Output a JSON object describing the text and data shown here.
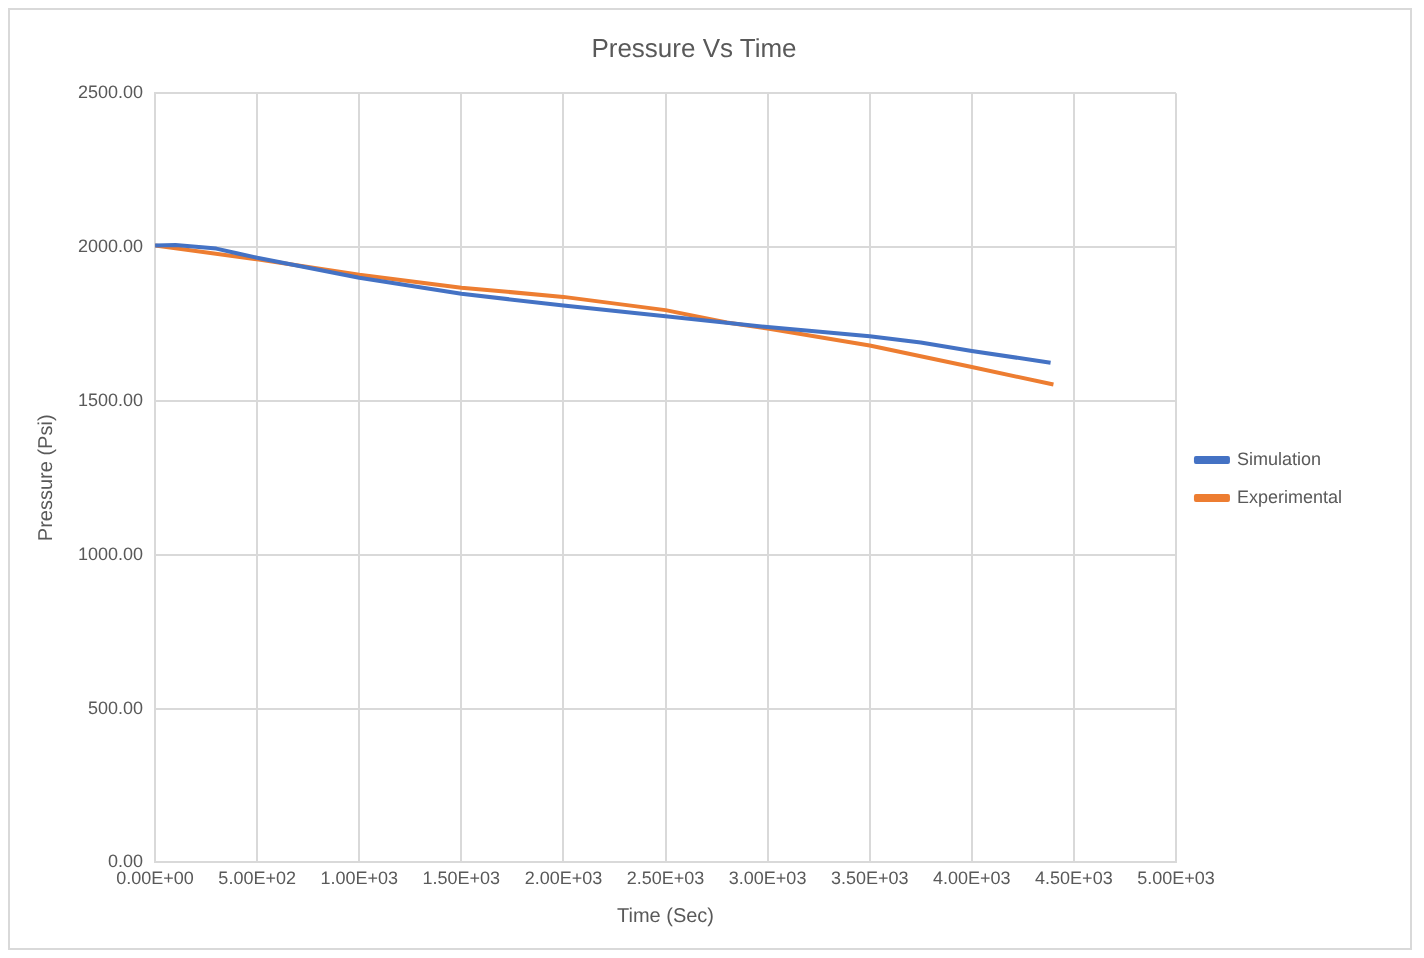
{
  "chart_data": {
    "type": "line",
    "title": "Pressure Vs Time",
    "xlabel": "Time (Sec)",
    "ylabel": "Pressure (Psi)",
    "series": [
      {
        "name": "Simulation",
        "color": "#4472c4",
        "x": [
          0,
          100,
          300,
          400,
          500,
          1000,
          1500,
          2000,
          2500,
          3000,
          3500,
          3750,
          4000,
          4386
        ],
        "values": [
          2005,
          2007,
          1995,
          1980,
          1965,
          1900,
          1848,
          1810,
          1775,
          1740,
          1710,
          1690,
          1662,
          1624
        ]
      },
      {
        "name": "Experimental",
        "color": "#ed7d31",
        "x": [
          0,
          500,
          1000,
          1500,
          2000,
          2500,
          2800,
          3000,
          3500,
          4000,
          4400
        ],
        "values": [
          2005,
          1960,
          1910,
          1868,
          1838,
          1795,
          1755,
          1735,
          1680,
          1610,
          1553
        ]
      }
    ],
    "xlim": [
      0,
      5000
    ],
    "xticks": [
      {
        "value": 0,
        "label": "0.00E+00"
      },
      {
        "value": 500,
        "label": "5.00E+02"
      },
      {
        "value": 1000,
        "label": "1.00E+03"
      },
      {
        "value": 1500,
        "label": "1.50E+03"
      },
      {
        "value": 2000,
        "label": "2.00E+03"
      },
      {
        "value": 2500,
        "label": "2.50E+03"
      },
      {
        "value": 3000,
        "label": "3.00E+03"
      },
      {
        "value": 3500,
        "label": "3.50E+03"
      },
      {
        "value": 4000,
        "label": "4.00E+03"
      },
      {
        "value": 4500,
        "label": "4.50E+03"
      },
      {
        "value": 5000,
        "label": "5.00E+03"
      }
    ],
    "ylim": [
      0,
      2500
    ],
    "yticks": [
      {
        "value": 0,
        "label": "0.00"
      },
      {
        "value": 500,
        "label": "500.00"
      },
      {
        "value": 1000,
        "label": "1000.00"
      },
      {
        "value": 1500,
        "label": "1500.00"
      },
      {
        "value": 2000,
        "label": "2000.00"
      },
      {
        "value": 2500,
        "label": "2500.00"
      }
    ],
    "grid": true,
    "legend": "right",
    "marker": "none",
    "line_style": "solid"
  }
}
